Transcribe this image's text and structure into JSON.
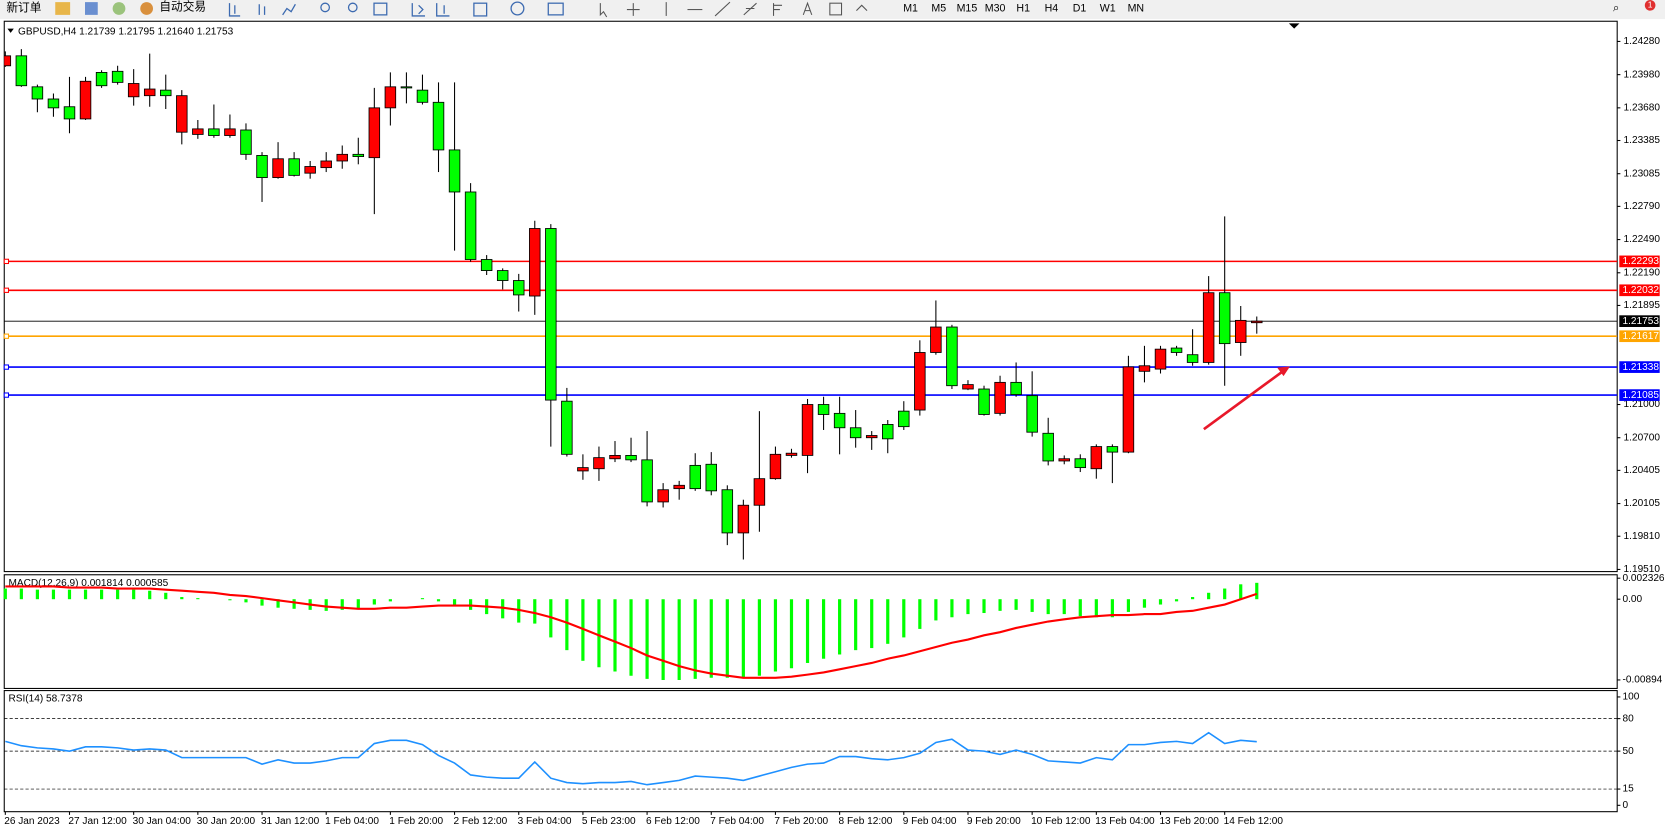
{
  "toolbar": {
    "new_order": "新订单",
    "auto_trading": "自动交易",
    "timeframes": [
      "M1",
      "M5",
      "M15",
      "M30",
      "H1",
      "H4",
      "D1",
      "W1",
      "MN"
    ],
    "alert_badge": "1"
  },
  "chart": {
    "header": "GBPUSD,H4  1.21739 1.21795 1.21640 1.21753",
    "price_ticks": [
      {
        "value": 1.2428,
        "label": "1.24280"
      },
      {
        "value": 1.2398,
        "label": "1.23980"
      },
      {
        "value": 1.2368,
        "label": "1.23680"
      },
      1.23385,
      1.23085,
      {
        "value": 1.2279,
        "label": "1.22790"
      },
      {
        "value": 1.2249,
        "label": "1.22490"
      },
      {
        "value": 1.2219,
        "label": "1.22190"
      },
      1.21895,
      {
        "value": 1.21,
        "label": "1.21000"
      },
      {
        "value": 1.207,
        "label": "1.20700"
      },
      1.20405,
      1.20105,
      {
        "value": 1.1981,
        "label": "1.19810"
      },
      {
        "value": 1.1951,
        "label": "1.19510"
      }
    ],
    "levels": [
      {
        "value": 1.22293,
        "color": "#ff0000"
      },
      {
        "value": 1.22032,
        "color": "#ff0000"
      },
      {
        "value": 1.21753,
        "color": "#000000"
      },
      {
        "value": 1.21617,
        "color": "#ffa500"
      },
      {
        "value": 1.21338,
        "color": "#0000ff"
      },
      {
        "value": 1.21085,
        "color": "#0000ff"
      }
    ],
    "up_color": "#ff0000",
    "down_color": "#00ff00",
    "open": [
      1.2406,
      1.2415,
      1.2387,
      1.2376,
      1.2369,
      1.2358,
      1.24,
      1.2401,
      1.2378,
      1.2379,
      1.2384,
      1.2346,
      1.2344,
      1.2349,
      1.2343,
      1.2348,
      1.2325,
      1.2305,
      1.2322,
      1.2309,
      1.2314,
      1.232,
      1.2326,
      1.2323,
      1.2368,
      1.2387,
      1.2384,
      1.2373,
      1.233,
      1.2292,
      1.2231,
      1.2221,
      1.2212,
      1.2198,
      1.2259,
      1.2103,
      1.204,
      1.2042,
      1.2051,
      1.2054,
      1.205,
      1.2012,
      1.2024,
      1.2045,
      1.2046,
      1.2023,
      1.1984,
      1.2009,
      1.2033,
      1.2054,
      1.2054,
      1.21,
      1.2092,
      1.2079,
      1.207,
      1.2082,
      1.2094,
      1.2095,
      1.2147,
      1.217,
      1.2114,
      1.2114,
      1.2092,
      1.212,
      1.2108,
      1.2074,
      1.2049,
      1.2051,
      1.2042,
      1.2062,
      1.2057,
      1.213,
      1.2132,
      1.2151,
      1.2145,
      1.2138,
      1.2201,
      1.2156,
      1.21739
    ],
    "high": [
      1.2419,
      1.2421,
      1.2389,
      1.2381,
      1.2396,
      1.2396,
      1.2402,
      1.2406,
      1.2403,
      1.2417,
      1.2398,
      1.2384,
      1.2357,
      1.2371,
      1.2362,
      1.2354,
      1.2328,
      1.2337,
      1.2328,
      1.232,
      1.2328,
      1.2334,
      1.2341,
      1.2386,
      1.24,
      1.24,
      1.2398,
      1.2391,
      1.2391,
      1.23,
      1.2235,
      1.2223,
      1.2218,
      1.2266,
      1.2263,
      1.2115,
      1.2055,
      1.2062,
      1.2067,
      1.207,
      1.2076,
      1.2029,
      1.2031,
      1.2056,
      1.2057,
      1.2027,
      1.2014,
      1.2094,
      1.2062,
      1.206,
      1.2105,
      1.2107,
      1.2107,
      1.2095,
      1.2076,
      1.2086,
      1.2103,
      1.2158,
      1.2194,
      1.2172,
      1.2122,
      1.2117,
      1.2126,
      1.2138,
      1.213,
      1.2088,
      1.2054,
      1.2055,
      1.2064,
      1.2064,
      1.2144,
      1.2153,
      1.2153,
      1.2153,
      1.2168,
      1.2216,
      1.227,
      1.2189,
      1.21795
    ],
    "low": [
      1.2405,
      1.2387,
      1.2364,
      1.236,
      1.2345,
      1.2357,
      1.2386,
      1.2389,
      1.237,
      1.2369,
      1.2367,
      1.2335,
      1.234,
      1.2341,
      1.2341,
      1.2321,
      1.2283,
      1.2304,
      1.2306,
      1.2304,
      1.231,
      1.2313,
      1.2317,
      1.2272,
      1.2352,
      1.2372,
      1.2371,
      1.231,
      1.2239,
      1.2229,
      1.2217,
      1.2204,
      1.2184,
      1.2181,
      1.2062,
      1.2053,
      1.2032,
      1.2031,
      1.2048,
      1.2048,
      1.2008,
      1.2007,
      1.2014,
      1.2022,
      1.2018,
      1.1973,
      1.196,
      1.1985,
      1.2032,
      1.2052,
      1.2038,
      1.2077,
      1.2055,
      1.2061,
      1.2059,
      1.2056,
      1.2077,
      1.209,
      1.2145,
      1.2114,
      1.2113,
      1.209,
      1.209,
      1.2107,
      1.2071,
      1.2045,
      1.2046,
      1.2039,
      1.2033,
      1.2029,
      1.2056,
      1.212,
      1.2128,
      1.2144,
      1.2135,
      1.2136,
      1.2117,
      1.2144,
      1.2164
    ],
    "close": [
      1.2415,
      1.2388,
      1.2376,
      1.2368,
      1.2358,
      1.2392,
      1.2388,
      1.2391,
      1.239,
      1.2385,
      1.2379,
      1.2379,
      1.2349,
      1.2343,
      1.2349,
      1.2326,
      1.2305,
      1.2322,
      1.2307,
      1.2315,
      1.232,
      1.2326,
      1.2324,
      1.2368,
      1.2387,
      1.2386,
      1.2373,
      1.233,
      1.2292,
      1.2231,
      1.2221,
      1.2212,
      1.2199,
      1.2259,
      1.2104,
      1.2055,
      1.2043,
      1.2052,
      1.2054,
      1.205,
      1.2012,
      1.2023,
      1.2027,
      1.2024,
      1.2022,
      1.1984,
      1.2009,
      1.2033,
      1.2055,
      1.2056,
      1.21,
      1.2091,
      1.2079,
      1.207,
      1.2072,
      1.2069,
      1.208,
      1.2147,
      1.217,
      1.2117,
      1.2118,
      1.2091,
      1.212,
      1.2109,
      1.2075,
      1.2049,
      1.2051,
      1.2043,
      1.2062,
      1.2057,
      1.2134,
      1.2135,
      1.215,
      1.2147,
      1.2138,
      1.2201,
      1.2155,
      1.2176,
      1.21753
    ],
    "time_labels": [
      "26 Jan 2023",
      "27 Jan 12:00",
      "30 Jan 04:00",
      "30 Jan 20:00",
      "31 Jan 12:00",
      "1 Feb 04:00",
      "1 Feb 20:00",
      "2 Feb 12:00",
      "3 Feb 04:00",
      "5 Feb 23:00",
      "6 Feb 12:00",
      "7 Feb 04:00",
      "7 Feb 20:00",
      "8 Feb 12:00",
      "9 Feb 04:00",
      "9 Feb 20:00",
      "10 Feb 12:00",
      "13 Feb 04:00",
      "13 Feb 20:00",
      "14 Feb 12:00"
    ]
  },
  "macd": {
    "label": "MACD(12,26,9) 0.001814 0.000585",
    "ticks": [
      0.002326,
      {
        "value": 0,
        "label": "0.00"
      },
      -0.00894
    ],
    "histogram_color": "#00ff00",
    "signal_color": "#ff0000",
    "histogram": [
      0.00118,
      0.00118,
      0.00106,
      0.00106,
      0.00106,
      0.00106,
      0.00106,
      0.00106,
      0.00106,
      0.00094,
      0.00071,
      0.00024,
      0.00012,
      0,
      -0.00012,
      -0.00035,
      -0.00071,
      -0.00094,
      -0.00106,
      -0.00118,
      -0.00129,
      -0.00118,
      -0.00106,
      -0.00059,
      -0.00024,
      0,
      0.00012,
      -0.00024,
      -0.00059,
      -0.00118,
      -0.00165,
      -0.00212,
      -0.00259,
      -0.0027,
      -0.00423,
      -0.00564,
      -0.00682,
      -0.00753,
      -0.008,
      -0.00847,
      -0.00882,
      -0.00894,
      -0.00894,
      -0.00882,
      -0.0087,
      -0.0087,
      -0.0087,
      -0.00847,
      -0.008,
      -0.00764,
      -0.00706,
      -0.00659,
      -0.00612,
      -0.00564,
      -0.00541,
      -0.00494,
      -0.00423,
      -0.00329,
      -0.00235,
      -0.002,
      -0.00165,
      -0.00153,
      -0.00129,
      -0.00118,
      -0.00141,
      -0.00165,
      -0.00165,
      -0.00188,
      -0.002,
      -0.002,
      -0.00141,
      -0.00094,
      -0.00059,
      -0.00024,
      0.00024,
      0.00071,
      0.00118,
      0.00165,
      0.001814
    ],
    "signal": [
      0.00141,
      0.00141,
      0.00141,
      0.00141,
      0.00129,
      0.00129,
      0.00129,
      0.00118,
      0.00118,
      0.00118,
      0.00106,
      0.00094,
      0.00082,
      0.00071,
      0.00047,
      0.00035,
      0.00012,
      -0.00012,
      -0.00035,
      -0.00059,
      -0.00082,
      -0.00094,
      -0.00106,
      -0.00106,
      -0.00094,
      -0.00094,
      -0.00082,
      -0.00071,
      -0.00071,
      -0.00071,
      -0.00082,
      -0.00094,
      -0.00118,
      -0.00153,
      -0.002,
      -0.00259,
      -0.00329,
      -0.004,
      -0.0047,
      -0.00541,
      -0.00623,
      -0.00682,
      -0.00741,
      -0.00788,
      -0.00823,
      -0.00847,
      -0.0087,
      -0.0087,
      -0.0087,
      -0.00858,
      -0.00835,
      -0.00811,
      -0.00776,
      -0.00741,
      -0.00706,
      -0.00659,
      -0.00623,
      -0.00576,
      -0.00529,
      -0.00482,
      -0.00447,
      -0.004,
      -0.00365,
      -0.00318,
      -0.00282,
      -0.00247,
      -0.00223,
      -0.002,
      -0.00188,
      -0.00176,
      -0.00176,
      -0.00165,
      -0.00165,
      -0.00141,
      -0.00129,
      -0.00094,
      -0.00059,
      0,
      0.000585
    ]
  },
  "rsi": {
    "label": "RSI(14) 58.7378",
    "ticks": [
      100,
      80,
      50,
      15,
      0
    ],
    "levels": [
      80,
      50,
      15
    ],
    "color": "#1e90ff",
    "values": [
      59,
      55,
      53,
      52,
      50,
      54,
      54,
      53,
      51,
      52,
      51,
      44,
      44,
      44,
      44,
      44,
      38,
      42,
      39,
      39,
      41,
      44,
      44,
      57,
      60,
      60,
      56,
      46,
      39,
      28,
      26,
      25,
      25,
      40,
      25,
      21,
      20,
      21,
      21,
      22,
      19,
      21,
      23,
      27,
      26,
      25,
      23,
      27,
      31,
      35,
      38,
      39,
      45,
      45,
      43,
      42,
      44,
      48,
      58,
      61,
      51,
      50,
      47,
      51,
      47,
      41,
      40,
      39,
      44,
      42,
      56,
      56,
      58,
      59,
      57,
      67,
      57,
      60,
      58.7378
    ]
  }
}
